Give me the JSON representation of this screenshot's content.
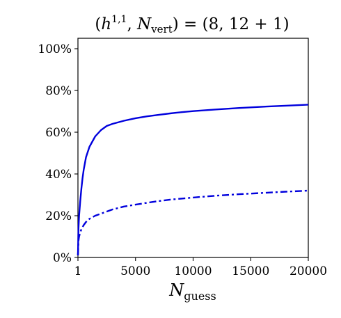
{
  "chart_data": {
    "type": "line",
    "title": "(h^{1,1}, N_vert) = (8, 12 + 1)",
    "title_parts": {
      "open": "(",
      "h": "h",
      "h_sup": "1,1",
      "comma1": ", ",
      "N": "N",
      "N_sub": "vert",
      "rhs": ") = (8, 12 + 1)"
    },
    "xlabel": "N_guess",
    "xlabel_parts": {
      "main": "N",
      "sub": "guess"
    },
    "ylabel": "",
    "xlim": [
      1,
      20000
    ],
    "ylim": [
      0,
      105
    ],
    "xticks": [
      1,
      5000,
      10000,
      15000,
      20000
    ],
    "xtick_labels": [
      "1",
      "5000",
      "10000",
      "15000",
      "20000"
    ],
    "yticks": [
      0,
      20,
      40,
      60,
      80,
      100
    ],
    "ytick_labels": [
      "0%",
      "20%",
      "40%",
      "60%",
      "80%",
      "100%"
    ],
    "grid": false,
    "legend": "none",
    "series": [
      {
        "style": "solid",
        "color": "#0000dd",
        "x": [
          1,
          50,
          100,
          200,
          300,
          400,
          500,
          700,
          1000,
          1500,
          2000,
          2500,
          3000,
          4000,
          5000,
          6000,
          7000,
          8000,
          9000,
          10000,
          12000,
          14000,
          16000,
          18000,
          20000
        ],
        "y": [
          1,
          14,
          20,
          27,
          33,
          38,
          42,
          48,
          53,
          58,
          61,
          63,
          64,
          65.5,
          66.7,
          67.6,
          68.3,
          69,
          69.6,
          70.1,
          70.9,
          71.6,
          72.2,
          72.7,
          73.2
        ]
      },
      {
        "style": "dashdot",
        "color": "#0000dd",
        "x": [
          1,
          50,
          100,
          200,
          300,
          500,
          700,
          1000,
          1500,
          2000,
          3000,
          4000,
          5000,
          6000,
          7000,
          8000,
          9000,
          10000,
          12000,
          14000,
          16000,
          18000,
          20000
        ],
        "y": [
          1,
          8,
          10,
          12,
          13.5,
          15.5,
          17,
          18.5,
          20,
          21,
          23,
          24.4,
          25.3,
          26.2,
          27,
          27.7,
          28.2,
          28.7,
          29.6,
          30.3,
          30.9,
          31.5,
          32
        ]
      }
    ]
  }
}
